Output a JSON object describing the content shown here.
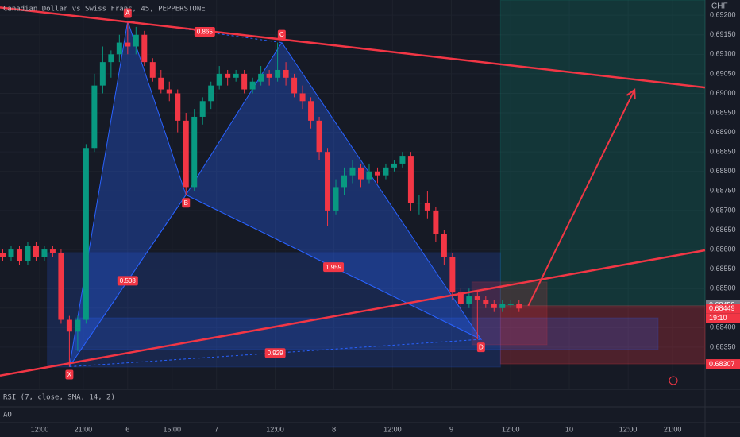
{
  "chart_data": {
    "type": "candlestick",
    "title": "Canadian Dollar vs Swiss Franc, 45, PEPPERSTONE",
    "currency": "CHF",
    "up_color": "#089981",
    "down_color": "#f23645",
    "x": [
      1,
      4,
      7,
      10,
      13,
      16,
      19,
      22,
      25,
      28,
      31,
      34,
      37,
      40,
      43,
      46,
      49,
      52,
      55,
      58,
      61,
      64,
      67,
      70,
      73,
      76,
      79,
      82,
      85,
      88,
      91,
      94,
      97,
      100,
      103,
      106,
      109,
      112,
      115,
      118,
      121,
      124,
      127,
      130,
      133,
      136,
      139,
      142,
      145,
      148,
      151,
      154,
      157,
      160,
      163,
      166,
      169,
      172,
      175,
      178,
      181,
      184,
      187
    ],
    "open": [
      0.6859,
      0.6858,
      0.686,
      0.6857,
      0.6861,
      0.6858,
      0.686,
      0.6859,
      0.6842,
      0.6839,
      0.6842,
      0.6886,
      0.6902,
      0.6908,
      0.691,
      0.6913,
      0.6912,
      0.6915,
      0.6908,
      0.6904,
      0.6901,
      0.69,
      0.6893,
      0.6876,
      0.6894,
      0.6898,
      0.6902,
      0.6905,
      0.6904,
      0.6905,
      0.6901,
      0.6903,
      0.6905,
      0.6904,
      0.6906,
      0.6904,
      0.69,
      0.6898,
      0.6893,
      0.6885,
      0.687,
      0.6876,
      0.6879,
      0.6881,
      0.6878,
      0.688,
      0.6879,
      0.6881,
      0.6882,
      0.6884,
      0.6872,
      0.6872,
      0.687,
      0.6864,
      0.6858,
      0.6849,
      0.6846,
      0.6848,
      0.6847,
      0.6846,
      0.6845,
      0.6846,
      0.6846
    ],
    "high": [
      0.686,
      0.6861,
      0.6861,
      0.6862,
      0.6862,
      0.6861,
      0.6861,
      0.686,
      0.6843,
      0.6843,
      0.6887,
      0.6905,
      0.6912,
      0.6911,
      0.6915,
      0.69185,
      0.6917,
      0.6916,
      0.6909,
      0.6906,
      0.6903,
      0.6901,
      0.6895,
      0.6896,
      0.6899,
      0.6903,
      0.6907,
      0.6906,
      0.6906,
      0.6906,
      0.6904,
      0.6907,
      0.6906,
      0.6913,
      0.6908,
      0.6905,
      0.6902,
      0.6899,
      0.6894,
      0.6886,
      0.6878,
      0.6881,
      0.6883,
      0.6882,
      0.6882,
      0.6881,
      0.6882,
      0.6883,
      0.6885,
      0.6885,
      0.6874,
      0.6875,
      0.6871,
      0.6865,
      0.6859,
      0.685,
      0.685,
      0.6849,
      0.6848,
      0.6847,
      0.6847,
      0.6847,
      0.6847
    ],
    "low": [
      0.6857,
      0.6857,
      0.6856,
      0.6856,
      0.6857,
      0.6857,
      0.6858,
      0.6841,
      0.683,
      0.6834,
      0.6841,
      0.6885,
      0.69,
      0.6904,
      0.6908,
      0.691,
      0.691,
      0.6907,
      0.6903,
      0.69,
      0.6898,
      0.689,
      0.6874,
      0.6875,
      0.6892,
      0.6896,
      0.6901,
      0.6902,
      0.6903,
      0.69,
      0.69,
      0.6902,
      0.6902,
      0.6903,
      0.6902,
      0.6899,
      0.6896,
      0.6891,
      0.6883,
      0.6866,
      0.6869,
      0.6874,
      0.6877,
      0.6876,
      0.6877,
      0.6877,
      0.6878,
      0.688,
      0.6881,
      0.687,
      0.6869,
      0.6868,
      0.6862,
      0.6856,
      0.6847,
      0.6844,
      0.6845,
      0.6837,
      0.6845,
      0.6844,
      0.6844,
      0.6845,
      0.6844
    ],
    "close": [
      0.6858,
      0.686,
      0.6857,
      0.6861,
      0.6858,
      0.686,
      0.6859,
      0.6842,
      0.6839,
      0.6842,
      0.6886,
      0.6902,
      0.6908,
      0.691,
      0.6913,
      0.6912,
      0.6915,
      0.6908,
      0.6904,
      0.6901,
      0.69,
      0.6893,
      0.6876,
      0.6894,
      0.6898,
      0.6902,
      0.6905,
      0.6904,
      0.6905,
      0.6901,
      0.6903,
      0.6905,
      0.6904,
      0.6906,
      0.6904,
      0.69,
      0.6898,
      0.6893,
      0.6885,
      0.687,
      0.6876,
      0.6879,
      0.6881,
      0.6878,
      0.688,
      0.6879,
      0.6881,
      0.6882,
      0.6884,
      0.6872,
      0.6872,
      0.687,
      0.6864,
      0.6858,
      0.6849,
      0.6846,
      0.6848,
      0.6847,
      0.6846,
      0.6845,
      0.6846,
      0.6846,
      0.68449
    ],
    "xlim": [
      0,
      254
    ],
    "ylim": [
      0.68242,
      0.69239
    ],
    "xticks": [
      {
        "value": 14.3,
        "label": "12:00"
      },
      {
        "value": 30,
        "label": "21:00"
      },
      {
        "value": 46,
        "label": "6"
      },
      {
        "value": 62,
        "label": "15:00"
      },
      {
        "value": 78,
        "label": "7"
      },
      {
        "value": 99.1,
        "label": "12:00"
      },
      {
        "value": 120.3,
        "label": "8"
      },
      {
        "value": 141.4,
        "label": "12:00"
      },
      {
        "value": 162.6,
        "label": "9"
      },
      {
        "value": 184,
        "label": "12:00"
      },
      {
        "value": 205.1,
        "label": "10"
      },
      {
        "value": 226.3,
        "label": "12:00"
      },
      {
        "value": 242.3,
        "label": "21:00"
      }
    ],
    "yticks": [
      {
        "value": 0.692,
        "label": "0.69200"
      },
      {
        "value": 0.6915,
        "label": "0.69150"
      },
      {
        "value": 0.691,
        "label": "0.69100"
      },
      {
        "value": 0.6905,
        "label": "0.69050"
      },
      {
        "value": 0.69,
        "label": "0.69000"
      },
      {
        "value": 0.6895,
        "label": "0.68950"
      },
      {
        "value": 0.689,
        "label": "0.68900"
      },
      {
        "value": 0.6885,
        "label": "0.68850"
      },
      {
        "value": 0.688,
        "label": "0.68800"
      },
      {
        "value": 0.6875,
        "label": "0.68750"
      },
      {
        "value": 0.687,
        "label": "0.68700"
      },
      {
        "value": 0.6865,
        "label": "0.68650"
      },
      {
        "value": 0.686,
        "label": "0.68600"
      },
      {
        "value": 0.6855,
        "label": "0.68550"
      },
      {
        "value": 0.685,
        "label": "0.68500"
      },
      {
        "value": 0.6845,
        "label": "0.68450"
      },
      {
        "value": 0.684,
        "label": "0.68400"
      },
      {
        "value": 0.6835,
        "label": "0.68350"
      }
    ],
    "price_tags": [
      {
        "value": 0.68458,
        "label": "0.68458",
        "color": "#787b86"
      },
      {
        "value": 0.68449,
        "label": "0.68449",
        "color": "#f23645"
      },
      {
        "value": 0.68307,
        "label": "0.68307",
        "color": "#f23645"
      }
    ],
    "countdown": "19:10",
    "zones": [
      {
        "x": [
          180.3,
          254
        ],
        "y": [
          0.68456,
          0.69239
        ],
        "color": "rgba(8,153,129,0.22)"
      },
      {
        "x": [
          180.3,
          254
        ],
        "y": [
          0.68307,
          0.68456
        ],
        "color": "rgba(242,54,69,0.25)"
      },
      {
        "x": [
          17.1,
          180.3
        ],
        "y": [
          0.68299,
          0.68592
        ],
        "color": "rgba(41,98,255,0.18)"
      },
      {
        "x": [
          27.1,
          237.1
        ],
        "y": [
          0.68344,
          0.68425
        ],
        "color": "rgba(41,98,255,0.2)"
      },
      {
        "x": [
          170,
          197.1
        ],
        "y": [
          0.68356,
          0.68517
        ],
        "color": "rgba(242,54,69,0.18)"
      }
    ],
    "harmonic": {
      "color": "#2962ff",
      "points": [
        {
          "label": "X",
          "x": 25,
          "y": 0.683
        },
        {
          "label": "A",
          "x": 46,
          "y": 0.69185
        },
        {
          "label": "B",
          "x": 67,
          "y": 0.6874
        },
        {
          "label": "C",
          "x": 101.5,
          "y": 0.6913
        },
        {
          "label": "D",
          "x": 173.3,
          "y": 0.6837
        }
      ],
      "ratios": [
        {
          "label": "0.865",
          "legs": [
            1,
            3
          ]
        },
        {
          "label": "0.508",
          "legs": [
            0,
            2
          ]
        },
        {
          "label": "1.959",
          "legs": [
            2,
            4
          ]
        },
        {
          "label": "0.929",
          "legs": [
            0,
            4
          ]
        }
      ]
    },
    "trend_lines": {
      "color": "#f23645",
      "lines": [
        {
          "x": [
            0,
            254
          ],
          "y": [
            0.6922,
            0.69015
          ]
        },
        {
          "x": [
            0,
            254
          ],
          "y": [
            0.68277,
            0.68598
          ]
        }
      ]
    },
    "arrow": {
      "x": [
        190.3,
        228.6
      ],
      "y": [
        0.68456,
        0.69009
      ]
    },
    "indicators": [
      "RSI (7, close, SMA, 14, 2)",
      "AO"
    ]
  }
}
